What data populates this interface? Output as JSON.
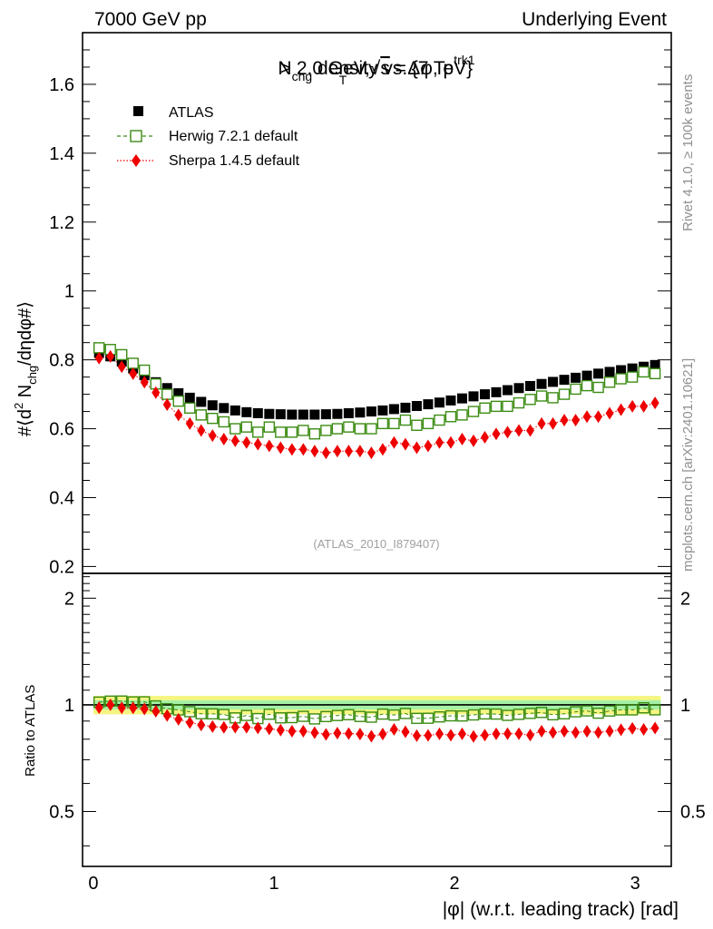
{
  "header": {
    "left": "7000 GeV pp",
    "right": "Underlying Event"
  },
  "side_labels": {
    "rivet": "Rivet 4.1.0, ≥ 100k events",
    "mcplots": "mcplots.cern.ch [arXiv:2401.10621]"
  },
  "watermark": "(ATLAS_2010_I879407)",
  "title": {
    "n": "N",
    "n_sub": "chg",
    "mid": " density vs.",
    "dphi": "Δφ",
    "comma": ", p",
    "p_sup": "trk1",
    "p_sub": "T",
    "rest": " > 2.0 GeV,",
    "sqrt": "√",
    "s": "s",
    "energy": " = {7 TeV}"
  },
  "ylabel": {
    "a": "#⟨d",
    "sup2": "2",
    "b": " N",
    "sub": "chg",
    "c": "/dηdφ#⟩"
  },
  "ratio_ylabel": "Ratio to ATLAS",
  "xlabel": "|φ| (w.r.t. leading track) [rad]",
  "legend": [
    {
      "label": "ATLAS"
    },
    {
      "label": "Herwig 7.2.1 default"
    },
    {
      "label": "Sherpa 1.4.5 default"
    }
  ],
  "chart_data": {
    "type": "scatter",
    "xlim": [
      -0.06,
      3.2
    ],
    "main_ylim": [
      0.18,
      1.75
    ],
    "ratio_ylim": [
      0.35,
      2.35
    ],
    "x_ticks": [
      0,
      1,
      2,
      3
    ],
    "x_tick_labels": [
      "0",
      "1",
      "2",
      "3"
    ],
    "main_y_ticks": [
      0.2,
      0.4,
      0.6,
      0.8,
      1,
      1.2,
      1.4,
      1.6
    ],
    "main_y_tick_labels": [
      "0.2",
      "0.4",
      "0.6",
      "0.8",
      "1",
      "1.2",
      "1.4",
      "1.6"
    ],
    "ratio_y_ticks": [
      0.5,
      1,
      2
    ],
    "ratio_y_tick_labels": [
      "0.5",
      "1",
      "2"
    ],
    "band": {
      "inner": 0.03,
      "outer": 0.06
    },
    "colors": {
      "atlas": "#000000",
      "herwig": "#3c8c14",
      "sherpa": "#ee0000",
      "band_inner": "#a5f0a5",
      "band_outer": "#f5f582"
    },
    "x": [
      0.0314,
      0.0942,
      0.1571,
      0.2199,
      0.2827,
      0.3456,
      0.4084,
      0.4712,
      0.5341,
      0.5969,
      0.6597,
      0.7226,
      0.7854,
      0.8482,
      0.911,
      0.9739,
      1.0367,
      1.0996,
      1.1624,
      1.2252,
      1.2881,
      1.3509,
      1.4137,
      1.4765,
      1.5394,
      1.6022,
      1.665,
      1.7279,
      1.7907,
      1.8535,
      1.9164,
      1.9792,
      2.042,
      2.1049,
      2.1677,
      2.2305,
      2.2934,
      2.3562,
      2.419,
      2.4819,
      2.5447,
      2.6075,
      2.6704,
      2.7332,
      2.796,
      2.8588,
      2.9217,
      2.9845,
      3.0473,
      3.1102
    ],
    "series": [
      {
        "name": "ATLAS",
        "values": [
          0.82,
          0.81,
          0.795,
          0.775,
          0.755,
          0.735,
          0.718,
          0.703,
          0.69,
          0.678,
          0.668,
          0.66,
          0.653,
          0.648,
          0.645,
          0.643,
          0.642,
          0.641,
          0.641,
          0.641,
          0.642,
          0.643,
          0.645,
          0.647,
          0.65,
          0.653,
          0.657,
          0.661,
          0.666,
          0.671,
          0.676,
          0.682,
          0.688,
          0.694,
          0.7,
          0.706,
          0.712,
          0.718,
          0.724,
          0.73,
          0.736,
          0.742,
          0.748,
          0.754,
          0.76,
          0.765,
          0.77,
          0.775,
          0.78,
          0.785
        ]
      },
      {
        "name": "Herwig 7.2.1 default",
        "values": [
          0.835,
          0.83,
          0.815,
          0.79,
          0.77,
          0.73,
          0.7,
          0.68,
          0.66,
          0.64,
          0.63,
          0.62,
          0.6,
          0.605,
          0.59,
          0.605,
          0.59,
          0.59,
          0.595,
          0.585,
          0.595,
          0.6,
          0.605,
          0.6,
          0.6,
          0.615,
          0.615,
          0.625,
          0.61,
          0.615,
          0.625,
          0.635,
          0.64,
          0.65,
          0.66,
          0.665,
          0.665,
          0.675,
          0.685,
          0.695,
          0.69,
          0.7,
          0.715,
          0.725,
          0.72,
          0.735,
          0.745,
          0.75,
          0.765,
          0.76
        ]
      },
      {
        "name": "Sherpa 1.4.5 default",
        "values": [
          0.805,
          0.81,
          0.78,
          0.76,
          0.735,
          0.705,
          0.67,
          0.64,
          0.615,
          0.595,
          0.58,
          0.57,
          0.565,
          0.56,
          0.555,
          0.55,
          0.545,
          0.54,
          0.54,
          0.535,
          0.53,
          0.535,
          0.535,
          0.535,
          0.53,
          0.54,
          0.56,
          0.555,
          0.545,
          0.55,
          0.56,
          0.56,
          0.57,
          0.565,
          0.575,
          0.585,
          0.59,
          0.595,
          0.595,
          0.615,
          0.615,
          0.625,
          0.625,
          0.635,
          0.635,
          0.645,
          0.655,
          0.665,
          0.665,
          0.675
        ]
      }
    ]
  }
}
